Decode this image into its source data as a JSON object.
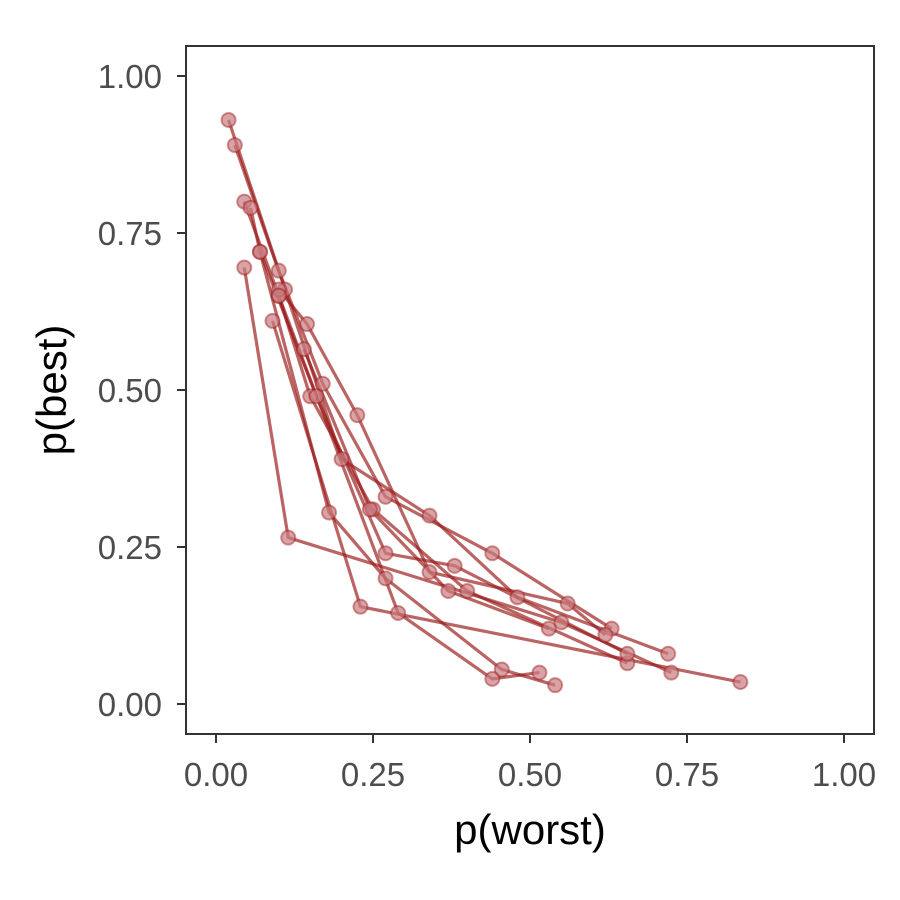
{
  "chart_data": {
    "type": "scatter",
    "title": "",
    "xlabel": "p(worst)",
    "ylabel": "p(best)",
    "xlim": [
      -0.05,
      1.05
    ],
    "ylim": [
      -0.05,
      1.05
    ],
    "x_ticks": [
      "0.00",
      "0.25",
      "0.50",
      "0.75",
      "1.00"
    ],
    "y_ticks": [
      "0.00",
      "0.25",
      "0.50",
      "0.75",
      "1.00"
    ],
    "grid": false,
    "legend": "none",
    "series_color": "#9b1b1b",
    "marker_fill": "#c97c80",
    "series": [
      {
        "points": [
          [
            0.02,
            0.93
          ],
          [
            0.1,
            0.69
          ],
          [
            0.17,
            0.51
          ],
          [
            0.27,
            0.33
          ],
          [
            0.44,
            0.24
          ],
          [
            0.63,
            0.12
          ]
        ]
      },
      {
        "points": [
          [
            0.03,
            0.89
          ],
          [
            0.11,
            0.66
          ],
          [
            0.2,
            0.39
          ],
          [
            0.34,
            0.3
          ],
          [
            0.48,
            0.17
          ],
          [
            0.72,
            0.08
          ]
        ]
      },
      {
        "points": [
          [
            0.045,
            0.8
          ],
          [
            0.1,
            0.65
          ],
          [
            0.15,
            0.49
          ],
          [
            0.25,
            0.31
          ],
          [
            0.4,
            0.18
          ],
          [
            0.655,
            0.065
          ]
        ]
      },
      {
        "points": [
          [
            0.055,
            0.79
          ],
          [
            0.07,
            0.72
          ],
          [
            0.16,
            0.49
          ],
          [
            0.27,
            0.24
          ],
          [
            0.38,
            0.22
          ],
          [
            0.655,
            0.08
          ]
        ]
      },
      {
        "points": [
          [
            0.045,
            0.695
          ],
          [
            0.115,
            0.265
          ],
          [
            0.55,
            0.13
          ],
          [
            0.725,
            0.05
          ]
        ]
      },
      {
        "points": [
          [
            0.07,
            0.72
          ],
          [
            0.18,
            0.305
          ],
          [
            0.27,
            0.2
          ],
          [
            0.455,
            0.055
          ],
          [
            0.54,
            0.03
          ]
        ]
      },
      {
        "points": [
          [
            0.09,
            0.61
          ],
          [
            0.23,
            0.155
          ],
          [
            0.835,
            0.035
          ]
        ]
      },
      {
        "points": [
          [
            0.1,
            0.66
          ],
          [
            0.145,
            0.605
          ],
          [
            0.225,
            0.46
          ],
          [
            0.34,
            0.21
          ],
          [
            0.56,
            0.16
          ],
          [
            0.62,
            0.11
          ]
        ]
      },
      {
        "points": [
          [
            0.14,
            0.565
          ],
          [
            0.245,
            0.31
          ],
          [
            0.37,
            0.18
          ],
          [
            0.53,
            0.12
          ]
        ]
      },
      {
        "points": [
          [
            0.1,
            0.65
          ],
          [
            0.29,
            0.145
          ],
          [
            0.44,
            0.04
          ],
          [
            0.515,
            0.05
          ]
        ]
      }
    ]
  }
}
